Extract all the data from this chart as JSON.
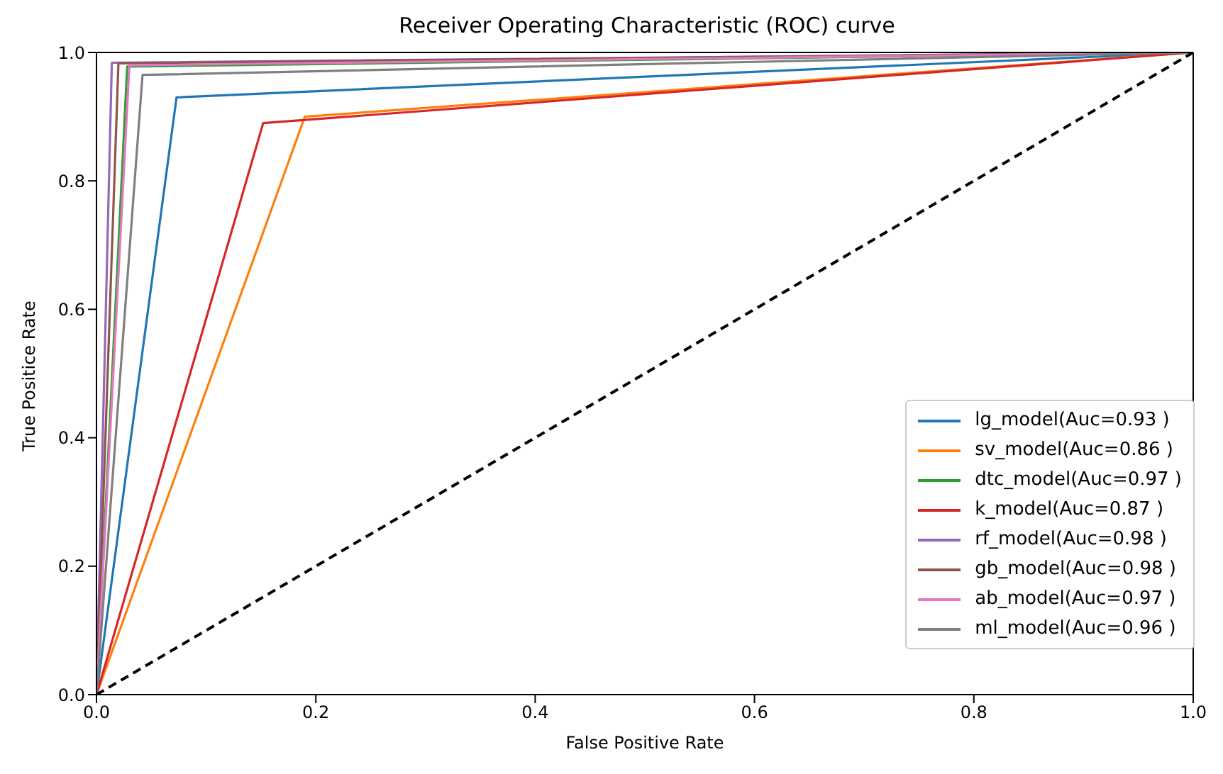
{
  "chart_data": {
    "type": "line",
    "title": "Receiver Operating Characteristic (ROC) curve",
    "xlabel": "False Positive Rate",
    "ylabel": "True Positice Rate",
    "xlim": [
      0,
      1
    ],
    "ylim": [
      0,
      1
    ],
    "xticks": [
      {
        "value": 0,
        "label": "0.0"
      },
      {
        "value": 0.2,
        "label": "0.2"
      },
      {
        "value": 0.4,
        "label": "0.4"
      },
      {
        "value": 0.6,
        "label": "0.6"
      },
      {
        "value": 0.8,
        "label": "0.8"
      },
      {
        "value": 1,
        "label": "1.0"
      }
    ],
    "yticks": [
      {
        "value": 0,
        "label": "0.0"
      },
      {
        "value": 0.2,
        "label": "0.2"
      },
      {
        "value": 0.4,
        "label": "0.4"
      },
      {
        "value": 0.6,
        "label": "0.6"
      },
      {
        "value": 0.8,
        "label": "0.8"
      },
      {
        "value": 1,
        "label": "1.0"
      }
    ],
    "legend": "bottom right",
    "marker": "none",
    "line_style": "solid",
    "series": [
      {
        "name": "lg_model(Auc=0.93 )",
        "color": "#1f77b4",
        "x": [
          0,
          0.073,
          1
        ],
        "values": [
          0,
          0.93,
          1
        ]
      },
      {
        "name": "sv_model(Auc=0.86 )",
        "color": "#ff7f0e",
        "x": [
          0,
          0.19,
          1
        ],
        "values": [
          0,
          0.9,
          1
        ]
      },
      {
        "name": "dtc_model(Auc=0.97 )",
        "color": "#2ca02c",
        "x": [
          0,
          0.028,
          1
        ],
        "values": [
          0,
          0.978,
          1
        ]
      },
      {
        "name": "k_model(Auc=0.87 )",
        "color": "#d62728",
        "x": [
          0,
          0.152,
          1
        ],
        "values": [
          0,
          0.89,
          1
        ]
      },
      {
        "name": "rf_model(Auc=0.98 )",
        "color": "#9467bd",
        "x": [
          0,
          0.014,
          1
        ],
        "values": [
          0,
          0.984,
          1
        ]
      },
      {
        "name": "gb_model(Auc=0.98 )",
        "color": "#8c564b",
        "x": [
          0,
          0.02,
          1
        ],
        "values": [
          0,
          0.983,
          1
        ]
      },
      {
        "name": "ab_model(Auc=0.97 )",
        "color": "#e377c2",
        "x": [
          0,
          0.03,
          1
        ],
        "values": [
          0,
          0.98,
          1
        ]
      },
      {
        "name": "ml_model(Auc=0.96 )",
        "color": "#7f7f7f",
        "x": [
          0,
          0.042,
          1
        ],
        "values": [
          0,
          0.965,
          1
        ]
      },
      {
        "color": "#000000",
        "line_style": "dashed",
        "x": [
          0,
          1
        ],
        "values": [
          0,
          1
        ]
      }
    ]
  }
}
